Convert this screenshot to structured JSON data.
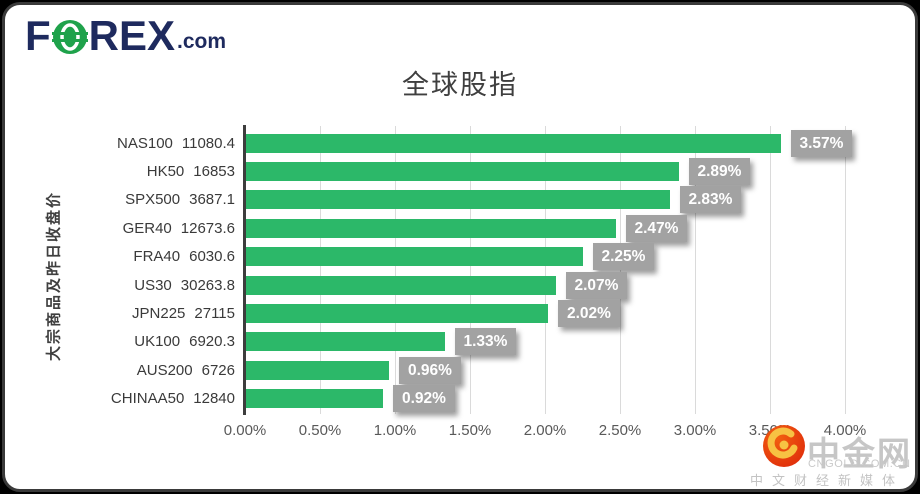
{
  "brand": {
    "logo_f": "F",
    "logo_rex": "REX",
    "logo_dotcom": ".com",
    "navy_color": "#1E2A5E",
    "green_color": "#1FA24B"
  },
  "title": "全球股指",
  "y_axis_label": "大宗商品及昨日收盘价",
  "chart_data": {
    "type": "bar",
    "orientation": "horizontal",
    "title": "全球股指",
    "categories": [
      "NAS100",
      "HK50",
      "SPX500",
      "GER40",
      "FRA40",
      "US30",
      "JPN225",
      "UK100",
      "AUS200",
      "CHINAA50"
    ],
    "close_prices": [
      "11080.4",
      "16853",
      "3687.1",
      "12673.6",
      "6030.6",
      "30263.8",
      "27115",
      "6920.3",
      "6726",
      "12840"
    ],
    "values": [
      3.57,
      2.89,
      2.83,
      2.47,
      2.25,
      2.07,
      2.02,
      1.33,
      0.96,
      0.92
    ],
    "value_labels": [
      "3.57%",
      "2.89%",
      "2.83%",
      "2.47%",
      "2.25%",
      "2.07%",
      "2.02%",
      "1.33%",
      "0.96%",
      "0.92%"
    ],
    "xlim": [
      0,
      4.0
    ],
    "x_ticks": [
      "0.00%",
      "0.50%",
      "1.00%",
      "1.50%",
      "2.00%",
      "2.50%",
      "3.00%",
      "3.50%",
      "4.00%"
    ],
    "grid": "vertical",
    "legend": "none",
    "bar_color": "#2CB869",
    "label_box_color": "#A2A2A2",
    "axis_line_color": "#3d3d3d"
  },
  "watermark": {
    "site_name": "中金网",
    "site_domain": "CNGOLD.COM.CN",
    "tagline": "中文财经新媒体"
  }
}
